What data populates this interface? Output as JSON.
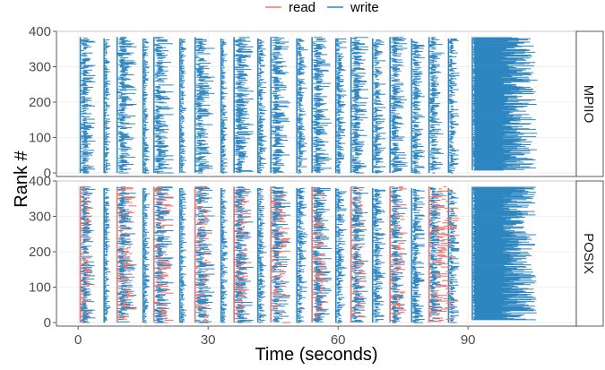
{
  "chart_data": {
    "type": "timeline",
    "xlabel": "Time (seconds)",
    "ylabel": "Rank #",
    "xlim": [
      -5,
      115
    ],
    "ylim": [
      -10,
      400
    ],
    "x_ticks": [
      0,
      30,
      60,
      90
    ],
    "y_ticks": [
      0,
      100,
      200,
      300,
      400
    ],
    "grid": true,
    "legend": {
      "position": "top",
      "entries": [
        {
          "name": "read",
          "color": "#F8766D"
        },
        {
          "name": "write",
          "color": "#2E86C1"
        }
      ]
    },
    "panels": [
      {
        "label": "MPIIO",
        "series": [
          "write"
        ],
        "write_phases": [
          {
            "start": 0.5,
            "end": 4.0,
            "ranks": [
              0,
              384
            ]
          },
          {
            "start": 6.0,
            "end": 7.5,
            "ranks": [
              0,
              380
            ]
          },
          {
            "start": 9.0,
            "end": 13.5,
            "ranks": [
              0,
              384
            ]
          },
          {
            "start": 15.0,
            "end": 16.5,
            "ranks": [
              0,
              380
            ]
          },
          {
            "start": 17.5,
            "end": 22.0,
            "ranks": [
              0,
              384
            ]
          },
          {
            "start": 23.5,
            "end": 25.0,
            "ranks": [
              0,
              380
            ]
          },
          {
            "start": 27.0,
            "end": 31.5,
            "ranks": [
              0,
              384
            ]
          },
          {
            "start": 33.0,
            "end": 34.5,
            "ranks": [
              0,
              380
            ]
          },
          {
            "start": 36.0,
            "end": 40.5,
            "ranks": [
              0,
              384
            ]
          },
          {
            "start": 41.5,
            "end": 43.5,
            "ranks": [
              0,
              380
            ]
          },
          {
            "start": 44.5,
            "end": 49.0,
            "ranks": [
              0,
              384
            ]
          },
          {
            "start": 50.5,
            "end": 53.0,
            "ranks": [
              0,
              380
            ]
          },
          {
            "start": 54.0,
            "end": 58.5,
            "ranks": [
              0,
              384
            ]
          },
          {
            "start": 59.5,
            "end": 62.0,
            "ranks": [
              0,
              380
            ]
          },
          {
            "start": 63.0,
            "end": 67.0,
            "ranks": [
              0,
              384
            ]
          },
          {
            "start": 68.0,
            "end": 71.0,
            "ranks": [
              0,
              380
            ]
          },
          {
            "start": 72.0,
            "end": 76.0,
            "ranks": [
              0,
              384
            ]
          },
          {
            "start": 77.0,
            "end": 80.0,
            "ranks": [
              0,
              380
            ]
          },
          {
            "start": 81.0,
            "end": 84.5,
            "ranks": [
              0,
              384
            ]
          },
          {
            "start": 85.5,
            "end": 88.0,
            "ranks": [
              0,
              380
            ]
          },
          {
            "start": 91.0,
            "end": 106.0,
            "ranks": [
              8,
              384
            ]
          }
        ]
      },
      {
        "label": "POSIX",
        "series": [
          "read",
          "write"
        ],
        "write_phases": [
          {
            "start": 0.5,
            "end": 4.0,
            "ranks": [
              0,
              384
            ]
          },
          {
            "start": 6.0,
            "end": 7.5,
            "ranks": [
              0,
              380
            ]
          },
          {
            "start": 9.0,
            "end": 13.5,
            "ranks": [
              0,
              384
            ]
          },
          {
            "start": 15.0,
            "end": 16.5,
            "ranks": [
              0,
              380
            ]
          },
          {
            "start": 17.5,
            "end": 22.0,
            "ranks": [
              0,
              384
            ]
          },
          {
            "start": 23.5,
            "end": 25.0,
            "ranks": [
              0,
              380
            ]
          },
          {
            "start": 27.0,
            "end": 31.5,
            "ranks": [
              0,
              384
            ]
          },
          {
            "start": 33.0,
            "end": 34.5,
            "ranks": [
              0,
              380
            ]
          },
          {
            "start": 36.0,
            "end": 40.5,
            "ranks": [
              0,
              384
            ]
          },
          {
            "start": 41.5,
            "end": 43.5,
            "ranks": [
              0,
              380
            ]
          },
          {
            "start": 44.5,
            "end": 49.0,
            "ranks": [
              0,
              384
            ]
          },
          {
            "start": 50.5,
            "end": 53.0,
            "ranks": [
              0,
              380
            ]
          },
          {
            "start": 54.0,
            "end": 58.5,
            "ranks": [
              0,
              384
            ]
          },
          {
            "start": 59.5,
            "end": 62.0,
            "ranks": [
              0,
              380
            ]
          },
          {
            "start": 63.0,
            "end": 67.0,
            "ranks": [
              0,
              384
            ]
          },
          {
            "start": 68.0,
            "end": 71.0,
            "ranks": [
              0,
              380
            ]
          },
          {
            "start": 72.0,
            "end": 76.0,
            "ranks": [
              0,
              384
            ]
          },
          {
            "start": 77.0,
            "end": 80.0,
            "ranks": [
              0,
              380
            ]
          },
          {
            "start": 81.0,
            "end": 84.5,
            "ranks": [
              0,
              384
            ]
          },
          {
            "start": 85.5,
            "end": 88.0,
            "ranks": [
              0,
              380
            ]
          },
          {
            "start": 91.0,
            "end": 106.0,
            "ranks": [
              8,
              384
            ]
          }
        ],
        "read_phases": [
          {
            "start": 0.5,
            "end": 3.5,
            "ranks": [
              0,
              384
            ]
          },
          {
            "start": 9.0,
            "end": 13.5,
            "ranks": [
              0,
              384
            ]
          },
          {
            "start": 17.5,
            "end": 22.0,
            "ranks": [
              0,
              384
            ]
          },
          {
            "start": 27.0,
            "end": 31.0,
            "ranks": [
              0,
              384
            ]
          },
          {
            "start": 36.0,
            "end": 40.0,
            "ranks": [
              0,
              384
            ]
          },
          {
            "start": 44.5,
            "end": 49.0,
            "ranks": [
              0,
              384
            ]
          },
          {
            "start": 54.0,
            "end": 58.0,
            "ranks": [
              0,
              384
            ]
          },
          {
            "start": 63.0,
            "end": 66.5,
            "ranks": [
              0,
              384
            ]
          },
          {
            "start": 72.0,
            "end": 76.0,
            "ranks": [
              0,
              384
            ]
          },
          {
            "start": 81.0,
            "end": 88.0,
            "ranks": [
              0,
              384
            ]
          }
        ]
      }
    ]
  }
}
